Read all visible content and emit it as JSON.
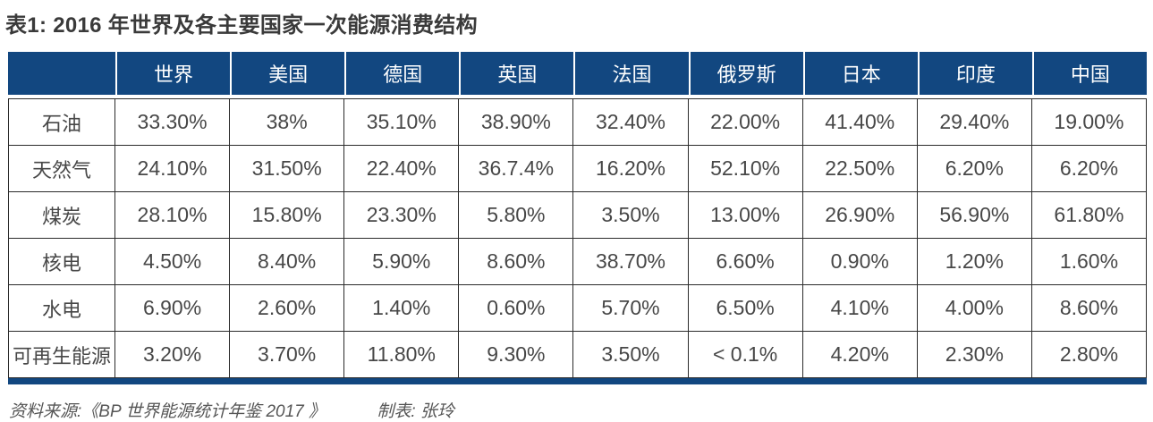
{
  "title": "表1: 2016 年世界及各主要国家一次能源消费结构",
  "table": {
    "corner_label": "",
    "columns": [
      "世界",
      "美国",
      "德国",
      "英国",
      "法国",
      "俄罗斯",
      "日本",
      "印度",
      "中国"
    ],
    "rows": [
      {
        "label": "石油",
        "values": [
          "33.30%",
          "38%",
          "35.10%",
          "38.90%",
          "32.40%",
          "22.00%",
          "41.40%",
          "29.40%",
          "19.00%"
        ]
      },
      {
        "label": "天然气",
        "values": [
          "24.10%",
          "31.50%",
          "22.40%",
          "36.7.4%",
          "16.20%",
          "52.10%",
          "22.50%",
          "6.20%",
          "6.20%"
        ]
      },
      {
        "label": "煤炭",
        "values": [
          "28.10%",
          "15.80%",
          "23.30%",
          "5.80%",
          "3.50%",
          "13.00%",
          "26.90%",
          "56.90%",
          "61.80%"
        ]
      },
      {
        "label": "核电",
        "values": [
          "4.50%",
          "8.40%",
          "5.90%",
          "8.60%",
          "38.70%",
          "6.60%",
          "0.90%",
          "1.20%",
          "1.60%"
        ]
      },
      {
        "label": "水电",
        "values": [
          "6.90%",
          "2.60%",
          "1.40%",
          "0.60%",
          "5.70%",
          "6.50%",
          "4.10%",
          "4.00%",
          "8.60%"
        ]
      },
      {
        "label": "可再生能源",
        "values": [
          "3.20%",
          "3.70%",
          "11.80%",
          "9.30%",
          "3.50%",
          "< 0.1%",
          "4.20%",
          "2.30%",
          "2.80%"
        ]
      }
    ]
  },
  "footer": {
    "source": "资料来源:《BP 世界能源统计年鉴 2017 》",
    "author": "制表: 张玲"
  },
  "colors": {
    "header_bg": "#124780",
    "bottom_border": "#124780",
    "grid_line": "#2b2b2b",
    "title_text": "#3a3a3a",
    "cell_text": "#474747"
  },
  "chart_data": {
    "type": "table",
    "title": "表1: 2016 年世界及各主要国家一次能源消费结构",
    "columns": [
      "",
      "世界",
      "美国",
      "德国",
      "英国",
      "法国",
      "俄罗斯",
      "日本",
      "印度",
      "中国"
    ],
    "rows": [
      [
        "石油",
        "33.30%",
        "38%",
        "35.10%",
        "38.90%",
        "32.40%",
        "22.00%",
        "41.40%",
        "29.40%",
        "19.00%"
      ],
      [
        "天然气",
        "24.10%",
        "31.50%",
        "22.40%",
        "36.7.4%",
        "16.20%",
        "52.10%",
        "22.50%",
        "6.20%",
        "6.20%"
      ],
      [
        "煤炭",
        "28.10%",
        "15.80%",
        "23.30%",
        "5.80%",
        "3.50%",
        "13.00%",
        "26.90%",
        "56.90%",
        "61.80%"
      ],
      [
        "核电",
        "4.50%",
        "8.40%",
        "5.90%",
        "8.60%",
        "38.70%",
        "6.60%",
        "0.90%",
        "1.20%",
        "1.60%"
      ],
      [
        "水电",
        "6.90%",
        "2.60%",
        "1.40%",
        "0.60%",
        "5.70%",
        "6.50%",
        "4.10%",
        "4.00%",
        "8.60%"
      ],
      [
        "可再生能源",
        "3.20%",
        "3.70%",
        "11.80%",
        "9.30%",
        "3.50%",
        "< 0.1%",
        "4.20%",
        "2.30%",
        "2.80%"
      ]
    ]
  }
}
